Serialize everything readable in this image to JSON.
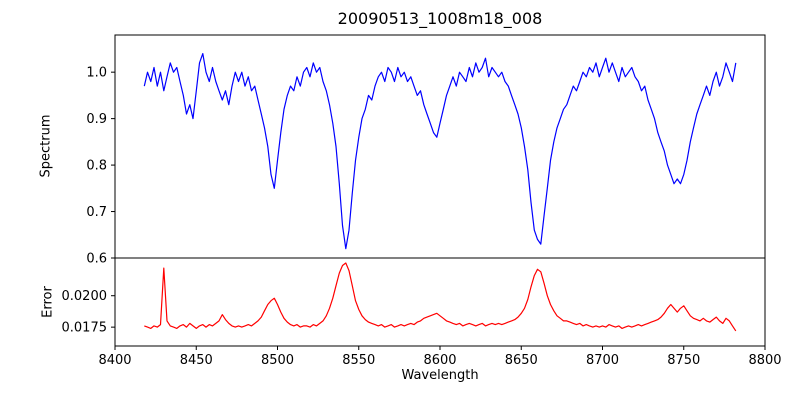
{
  "title": "20090513_1008m18_008",
  "xlabel": "Wavelength",
  "xlim": [
    8400,
    8800
  ],
  "xticks": [
    8400,
    8450,
    8500,
    8550,
    8600,
    8650,
    8700,
    8750,
    8800
  ],
  "xtick_labels": [
    "8400",
    "8450",
    "8500",
    "8550",
    "8600",
    "8650",
    "8700",
    "8750",
    "8800"
  ],
  "chart_data": [
    {
      "type": "line",
      "name": "spectrum",
      "ylabel": "Spectrum",
      "color": "#0000ff",
      "ylim": [
        0.6,
        1.08
      ],
      "yticks": [
        0.6,
        0.7,
        0.8,
        0.9,
        1.0
      ],
      "ytick_labels": [
        "0.6",
        "0.7",
        "0.8",
        "0.9",
        "1.0"
      ],
      "x_start": 8418,
      "x_step": 2,
      "values": [
        0.97,
        1.0,
        0.98,
        1.01,
        0.97,
        1.0,
        0.96,
        0.99,
        1.02,
        1.0,
        1.01,
        0.98,
        0.95,
        0.91,
        0.93,
        0.9,
        0.96,
        1.02,
        1.04,
        1.0,
        0.98,
        1.01,
        0.98,
        0.96,
        0.94,
        0.96,
        0.93,
        0.97,
        1.0,
        0.98,
        1.0,
        0.97,
        0.99,
        0.96,
        0.97,
        0.94,
        0.91,
        0.88,
        0.84,
        0.78,
        0.75,
        0.81,
        0.87,
        0.92,
        0.95,
        0.97,
        0.96,
        0.99,
        0.97,
        1.0,
        1.01,
        0.99,
        1.02,
        1.0,
        1.01,
        0.98,
        0.96,
        0.93,
        0.89,
        0.84,
        0.76,
        0.67,
        0.62,
        0.66,
        0.74,
        0.81,
        0.86,
        0.9,
        0.92,
        0.95,
        0.94,
        0.97,
        0.99,
        1.0,
        0.98,
        1.01,
        1.0,
        0.98,
        1.01,
        0.99,
        1.0,
        0.98,
        0.99,
        0.97,
        0.95,
        0.96,
        0.93,
        0.91,
        0.89,
        0.87,
        0.86,
        0.89,
        0.92,
        0.95,
        0.97,
        0.99,
        0.97,
        1.0,
        0.99,
        0.98,
        1.01,
        0.99,
        1.02,
        1.0,
        1.01,
        1.03,
        0.99,
        1.01,
        1.0,
        0.99,
        1.0,
        0.98,
        0.97,
        0.95,
        0.93,
        0.91,
        0.88,
        0.84,
        0.79,
        0.72,
        0.66,
        0.64,
        0.63,
        0.69,
        0.75,
        0.81,
        0.85,
        0.88,
        0.9,
        0.92,
        0.93,
        0.95,
        0.97,
        0.96,
        0.98,
        1.0,
        0.99,
        1.01,
        1.0,
        1.02,
        0.99,
        1.01,
        1.03,
        1.0,
        1.02,
        1.0,
        0.98,
        1.01,
        0.99,
        1.0,
        1.01,
        0.99,
        0.98,
        0.96,
        0.97,
        0.94,
        0.92,
        0.9,
        0.87,
        0.85,
        0.83,
        0.8,
        0.78,
        0.76,
        0.77,
        0.76,
        0.78,
        0.81,
        0.85,
        0.88,
        0.91,
        0.93,
        0.95,
        0.97,
        0.95,
        0.98,
        1.0,
        0.97,
        0.99,
        1.02,
        1.0,
        0.98,
        1.02
      ]
    },
    {
      "type": "line",
      "name": "error",
      "ylabel": "Error",
      "color": "#ff0000",
      "ylim": [
        0.016,
        0.023
      ],
      "yticks": [
        0.0175,
        0.02
      ],
      "ytick_labels": [
        "0.0175",
        "0.0200"
      ],
      "x_start": 8418,
      "x_step": 2,
      "values": [
        0.0176,
        0.0175,
        0.0174,
        0.0176,
        0.0175,
        0.0177,
        0.0222,
        0.018,
        0.0176,
        0.0175,
        0.0174,
        0.0176,
        0.0177,
        0.0175,
        0.0178,
        0.0176,
        0.0174,
        0.0176,
        0.0177,
        0.0175,
        0.0177,
        0.0176,
        0.0178,
        0.018,
        0.0185,
        0.0181,
        0.0178,
        0.0176,
        0.0175,
        0.0176,
        0.0175,
        0.0176,
        0.0177,
        0.0176,
        0.0178,
        0.018,
        0.0183,
        0.0188,
        0.0193,
        0.0196,
        0.0198,
        0.0193,
        0.0187,
        0.0182,
        0.0179,
        0.0177,
        0.0176,
        0.0177,
        0.0175,
        0.0176,
        0.0176,
        0.0175,
        0.0177,
        0.0176,
        0.0178,
        0.018,
        0.0184,
        0.019,
        0.0198,
        0.0208,
        0.0218,
        0.0224,
        0.0226,
        0.022,
        0.0208,
        0.0196,
        0.0189,
        0.0184,
        0.0181,
        0.0179,
        0.0178,
        0.0177,
        0.0176,
        0.0177,
        0.0175,
        0.0176,
        0.0177,
        0.0175,
        0.0176,
        0.0177,
        0.0176,
        0.0177,
        0.0178,
        0.0177,
        0.0179,
        0.018,
        0.0182,
        0.0183,
        0.0184,
        0.0185,
        0.0186,
        0.0184,
        0.0182,
        0.018,
        0.0179,
        0.0178,
        0.0177,
        0.0178,
        0.0176,
        0.0177,
        0.0178,
        0.0177,
        0.0176,
        0.0177,
        0.0178,
        0.0176,
        0.0177,
        0.0178,
        0.0177,
        0.0178,
        0.0177,
        0.0178,
        0.0179,
        0.018,
        0.0181,
        0.0183,
        0.0186,
        0.019,
        0.0197,
        0.0207,
        0.0216,
        0.0221,
        0.0219,
        0.021,
        0.02,
        0.0193,
        0.0188,
        0.0184,
        0.0182,
        0.018,
        0.018,
        0.0179,
        0.0178,
        0.0177,
        0.0178,
        0.0176,
        0.0177,
        0.0176,
        0.0175,
        0.0176,
        0.0175,
        0.0176,
        0.0175,
        0.0177,
        0.0176,
        0.0175,
        0.0176,
        0.0174,
        0.0175,
        0.0176,
        0.0175,
        0.0176,
        0.0177,
        0.0176,
        0.0177,
        0.0178,
        0.0179,
        0.018,
        0.0181,
        0.0183,
        0.0186,
        0.019,
        0.0193,
        0.019,
        0.0187,
        0.019,
        0.0192,
        0.0188,
        0.0184,
        0.0182,
        0.0181,
        0.018,
        0.0182,
        0.018,
        0.0179,
        0.0181,
        0.0183,
        0.018,
        0.0178,
        0.0182,
        0.018,
        0.0176,
        0.0172
      ]
    }
  ]
}
